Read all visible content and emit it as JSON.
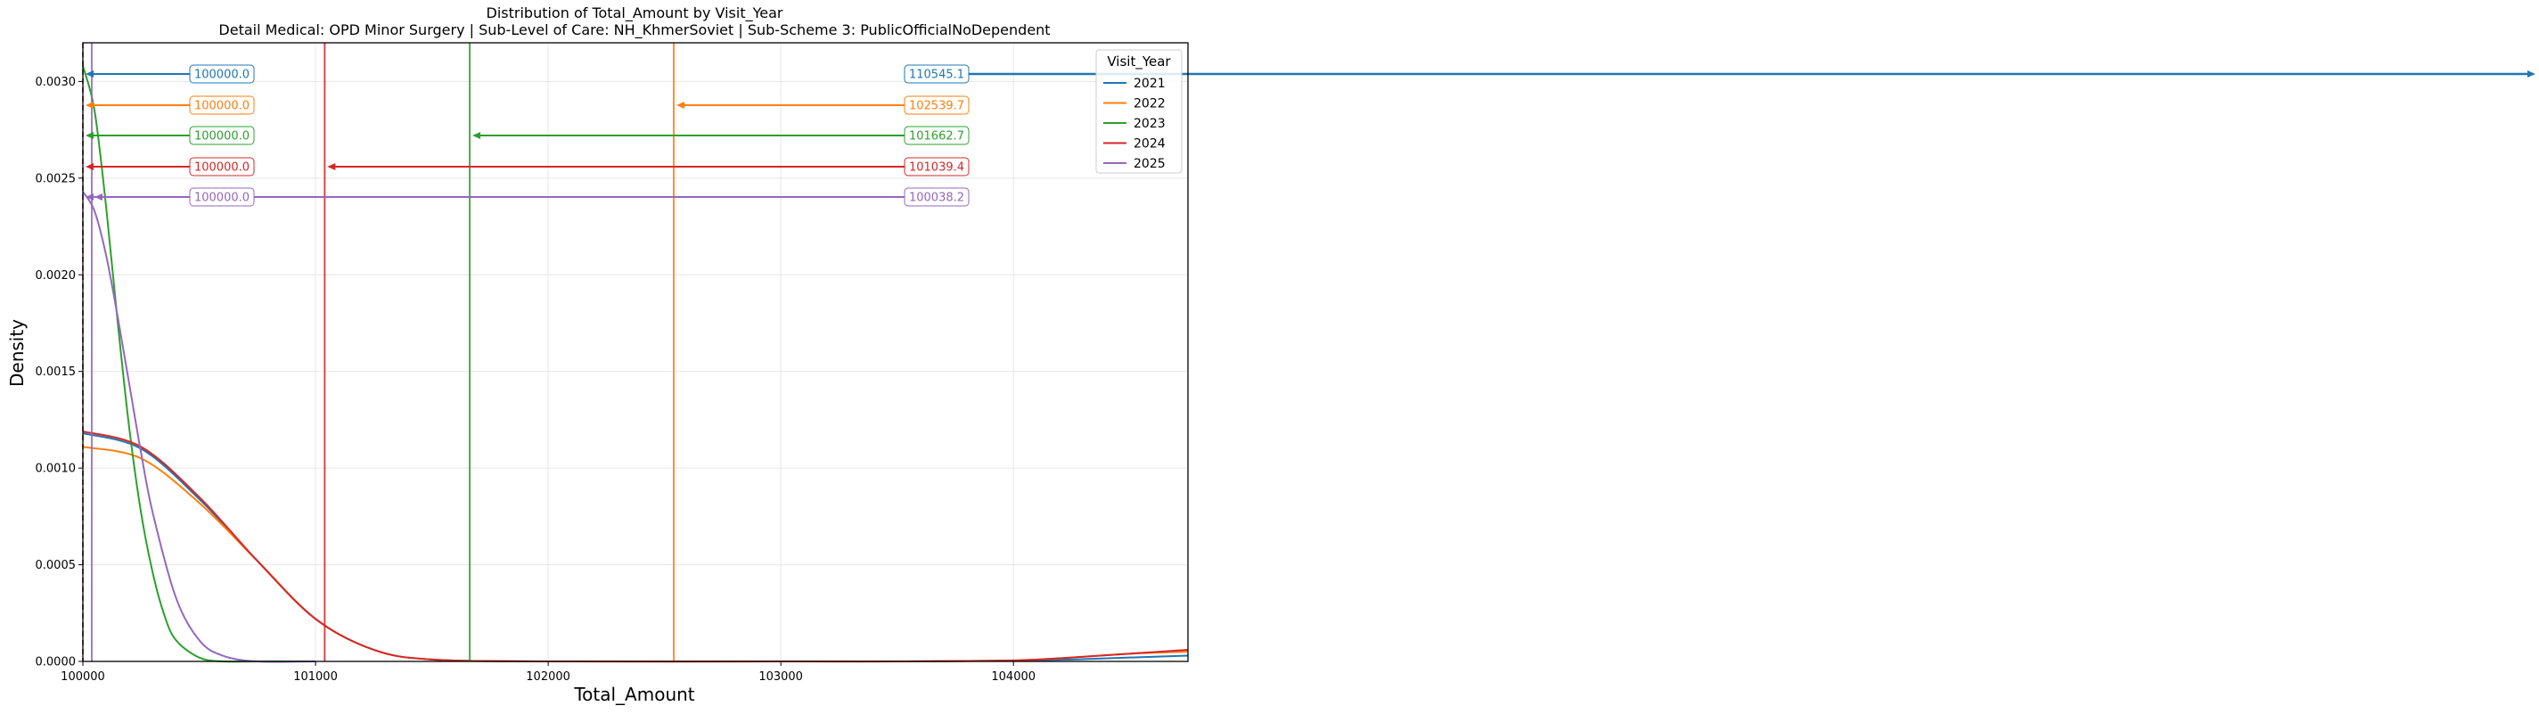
{
  "chart_data": {
    "type": "line",
    "title": "Distribution of Total_Amount by Visit_Year",
    "subtitle": "Detail Medical: OPD Minor Surgery | Sub-Level of Care: NH_KhmerSoviet | Sub-Scheme 3: PublicOfficialNoDependent",
    "xlabel": "Total_Amount",
    "ylabel": "Density",
    "xlim": [
      100000,
      104750
    ],
    "ylim": [
      0,
      0.0032
    ],
    "xticks": [
      100000,
      101000,
      102000,
      103000,
      104000
    ],
    "xtick_labels": [
      "100000",
      "101000",
      "102000",
      "103000",
      "104000"
    ],
    "yticks": [
      0,
      0.0005,
      0.001,
      0.0015,
      0.002,
      0.0025,
      0.003
    ],
    "ytick_labels": [
      "0.0000",
      "0.0005",
      "0.0010",
      "0.0015",
      "0.0020",
      "0.0025",
      "0.0030"
    ],
    "grid": true,
    "legend": {
      "title": "Visit_Year",
      "placement": "top-right"
    },
    "series": [
      {
        "name": "2021",
        "color": "#1f77b4",
        "x": [
          100000,
          100250,
          100500,
          100750,
          101000,
          101250,
          101500,
          102000,
          103000,
          103500,
          104000,
          104250,
          104500,
          104750
        ],
        "y": [
          0.00118,
          0.0011,
          0.00084,
          0.00052,
          0.00022,
          6e-05,
          1e-05,
          0,
          0,
          0,
          4e-06,
          1e-05,
          2e-05,
          3e-05
        ],
        "median": 100000.0,
        "mean": 110545.1,
        "median_label": "100000.0",
        "mean_label": "110545.1"
      },
      {
        "name": "2022",
        "color": "#ff7f0e",
        "x": [
          100000,
          100250,
          100500,
          100750,
          101000,
          101250,
          101500,
          102000,
          103000,
          103500,
          104000,
          104250,
          104500,
          104750
        ],
        "y": [
          0.00111,
          0.00105,
          0.00082,
          0.00052,
          0.00022,
          6e-05,
          1e-05,
          0,
          0,
          0,
          5e-06,
          2e-05,
          4e-05,
          5e-05
        ],
        "median": 100000.0,
        "mean": 102539.7,
        "median_label": "100000.0",
        "mean_label": "102539.7"
      },
      {
        "name": "2023",
        "color": "#2ca02c",
        "x": [
          100000,
          100050,
          100100,
          100150,
          100200,
          100250,
          100300,
          100350,
          100400,
          100500,
          100600,
          100750,
          101000
        ],
        "y": [
          0.00308,
          0.00285,
          0.00235,
          0.00175,
          0.0012,
          0.00077,
          0.00046,
          0.00024,
          0.00011,
          2e-05,
          0,
          0,
          0
        ],
        "median": 100000.0,
        "mean": 101662.7,
        "median_label": "100000.0",
        "mean_label": "101662.7"
      },
      {
        "name": "2024",
        "color": "#d62728",
        "x": [
          100000,
          100250,
          100500,
          100750,
          101000,
          101250,
          101500,
          102000,
          103000,
          103500,
          104000,
          104250,
          104500,
          104750
        ],
        "y": [
          0.00119,
          0.00111,
          0.00085,
          0.00052,
          0.00022,
          6e-05,
          1e-05,
          0,
          0,
          0,
          5e-06,
          2e-05,
          4e-05,
          6e-05
        ],
        "median": 100000.0,
        "mean": 101039.4,
        "median_label": "100000.0",
        "mean_label": "101039.4"
      },
      {
        "name": "2025",
        "color": "#9467bd",
        "x": [
          100000,
          100050,
          100100,
          100150,
          100200,
          100250,
          100300,
          100400,
          100500,
          100600,
          100750,
          101000
        ],
        "y": [
          0.00243,
          0.00233,
          0.0021,
          0.00178,
          0.00143,
          0.00108,
          0.00077,
          0.00033,
          0.00011,
          3e-05,
          0,
          0
        ],
        "median": 100000.0,
        "mean": 100038.2,
        "median_label": "100000.0",
        "mean_label": "100038.2"
      }
    ]
  }
}
